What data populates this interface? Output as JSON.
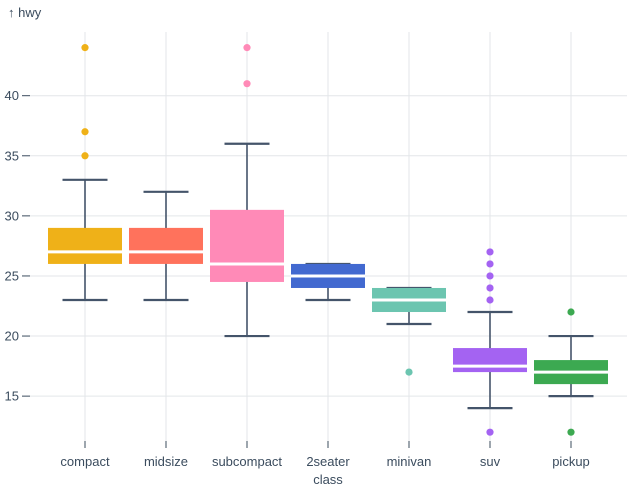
{
  "chart_title": "",
  "y_axis_title": "↑ hwy",
  "colors": {
    "background": "#ffffff",
    "text": "#3b4c5e",
    "grid": "#e3e6e9",
    "tick": "#3b4c5e",
    "whisker": "#44546a",
    "median": "#ffffff"
  },
  "chart_data": {
    "type": "boxplot",
    "title": "",
    "xlabel": "class",
    "ylabel": "hwy",
    "y_ticks": [
      15,
      20,
      25,
      30,
      35,
      40
    ],
    "y_domain": [
      11.1,
      45.3
    ],
    "grid": true,
    "legend": false,
    "categories": [
      "compact",
      "midsize",
      "subcompact",
      "2seater",
      "minivan",
      "suv",
      "pickup"
    ],
    "series": [
      {
        "category": "compact",
        "color": "#efb118",
        "whisker_low": 23,
        "q1": 26,
        "median": 27,
        "q3": 29,
        "whisker_high": 33,
        "outliers": [
          35,
          37,
          44
        ]
      },
      {
        "category": "midsize",
        "color": "#ff725c",
        "whisker_low": 23,
        "q1": 26,
        "median": 27,
        "q3": 29,
        "whisker_high": 32,
        "outliers": []
      },
      {
        "category": "subcompact",
        "color": "#ff8ab7",
        "whisker_low": 20,
        "q1": 24.5,
        "median": 26,
        "q3": 30.5,
        "whisker_high": 36,
        "outliers": [
          41,
          44
        ]
      },
      {
        "category": "2seater",
        "color": "#4269d0",
        "whisker_low": 23,
        "q1": 24,
        "median": 25,
        "q3": 26,
        "whisker_high": 26,
        "outliers": []
      },
      {
        "category": "minivan",
        "color": "#6cc5b0",
        "whisker_low": 21,
        "q1": 22,
        "median": 23,
        "q3": 24,
        "whisker_high": 24,
        "outliers": [
          17
        ]
      },
      {
        "category": "suv",
        "color": "#a463f2",
        "whisker_low": 14,
        "q1": 17,
        "median": 17.5,
        "q3": 19,
        "whisker_high": 22,
        "outliers": [
          12,
          23,
          24,
          25,
          26,
          27
        ]
      },
      {
        "category": "pickup",
        "color": "#3ca951",
        "whisker_low": 15,
        "q1": 16,
        "median": 17,
        "q3": 18,
        "whisker_high": 20,
        "outliers": [
          12,
          22
        ]
      }
    ]
  }
}
